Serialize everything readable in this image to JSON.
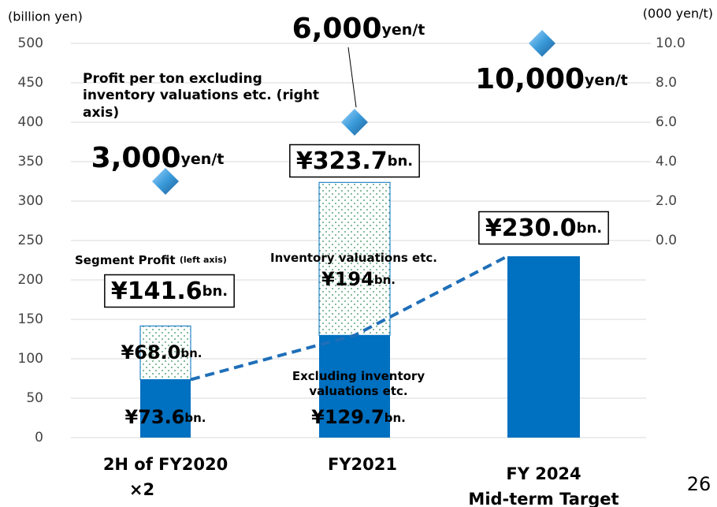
{
  "chart_data": {
    "type": "bar",
    "ylabel": "(billion yen)",
    "y2label": "(000 yen/t)",
    "categories": [
      "2H of FY2020\n×2",
      "FY2021",
      "FY 2024\nMid-term Target"
    ],
    "series": [
      {
        "name": "Excluding inventory valuations etc.",
        "color": "#0070c0",
        "values": [
          73.6,
          129.7,
          230.0
        ],
        "value_labels": [
          "¥73.6bn.",
          "¥129.7bn.",
          null
        ]
      },
      {
        "name": "Inventory valuations etc.",
        "color": "#2e8b57",
        "values": [
          68.0,
          194,
          null
        ],
        "value_labels": [
          "¥68.0bn.",
          "¥194bn.",
          null
        ]
      },
      {
        "name": "Profit per ton excluding inventory valuations etc. (right axis)",
        "type": "scatter",
        "axis": "y2",
        "color": "#3a9ad9",
        "values": [
          3.0,
          6.0,
          10.0
        ],
        "value_labels": [
          "3,000yen/t",
          "6,000yen/t",
          "10,000yen/t"
        ]
      }
    ],
    "totals": [
      141.6,
      323.7,
      230.0
    ],
    "total_labels": [
      "¥141.6bn.",
      "¥323.7bn.",
      "¥230.0bn."
    ],
    "segment_label": "Segment Profit",
    "segment_label_note": "(left axis)",
    "ylim": [
      0,
      500
    ],
    "yticks": [
      0,
      50,
      100,
      150,
      200,
      250,
      300,
      350,
      400,
      450,
      500
    ],
    "y2lim": [
      -10,
      10
    ],
    "y2ticks": [
      {
        "value": 0,
        "label": "0.0"
      },
      {
        "value": 2,
        "label": "2.0"
      },
      {
        "value": 4,
        "label": "4.0"
      },
      {
        "value": 6,
        "label": "6.0"
      },
      {
        "value": 8,
        "label": "8.0"
      },
      {
        "value": 10,
        "label": "10.0"
      }
    ],
    "grid": true,
    "page_number": "26"
  }
}
